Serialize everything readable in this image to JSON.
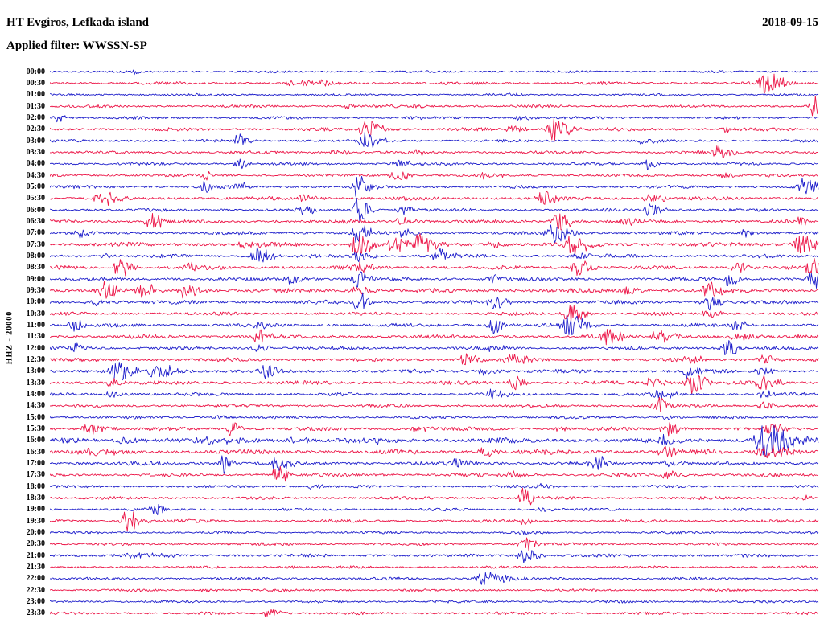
{
  "header": {
    "station_title": "HT Evgiros, Lefkada island",
    "date": "2018-09-15",
    "filter_label": "Applied filter: WWSSN-SP"
  },
  "y_axis_label": "HHZ - 20000",
  "chart_data": {
    "type": "line",
    "title": "HT Evgiros, Lefkada island",
    "date": "2018-09-15",
    "filter": "WWSSN-SP",
    "channel": "HHZ",
    "scale": 20000,
    "minutes_per_row": 30,
    "legend_position": "none",
    "grid": false,
    "colors": {
      "blue": "#1e1ecb",
      "red": "#ec1648"
    },
    "events_format": "[position_fraction_of_row, peak_amplitude_px, onset_width_px]",
    "rows": [
      {
        "label": "00:00",
        "color": "blue",
        "noise": 0.8,
        "events": [
          [
            0.11,
            3.5,
            3
          ]
        ]
      },
      {
        "label": "00:30",
        "color": "red",
        "noise": 1.1,
        "events": [
          [
            0.31,
            2.5,
            18
          ],
          [
            0.355,
            3,
            8
          ],
          [
            0.93,
            13,
            9
          ]
        ]
      },
      {
        "label": "01:00",
        "color": "blue",
        "noise": 0.8,
        "events": [
          [
            0.18,
            2,
            8
          ],
          [
            0.6,
            2,
            8
          ]
        ]
      },
      {
        "label": "01:30",
        "color": "red",
        "noise": 1.0,
        "events": [
          [
            0.385,
            5,
            4
          ],
          [
            0.475,
            3,
            5
          ],
          [
            0.995,
            15,
            7
          ]
        ]
      },
      {
        "label": "02:00",
        "color": "blue",
        "noise": 1.0,
        "events": [
          [
            0.008,
            8,
            4
          ],
          [
            0.47,
            3,
            6
          ],
          [
            0.61,
            3,
            7
          ]
        ]
      },
      {
        "label": "02:30",
        "color": "red",
        "noise": 1.2,
        "events": [
          [
            0.41,
            11,
            8
          ],
          [
            0.6,
            5,
            7
          ],
          [
            0.655,
            15,
            9
          ],
          [
            0.875,
            4,
            6
          ]
        ]
      },
      {
        "label": "03:00",
        "color": "blue",
        "noise": 1.0,
        "events": [
          [
            0.245,
            9,
            5
          ],
          [
            0.41,
            12,
            8
          ],
          [
            0.77,
            4,
            6
          ]
        ]
      },
      {
        "label": "03:30",
        "color": "red",
        "noise": 1.1,
        "events": [
          [
            0.37,
            4,
            7
          ],
          [
            0.475,
            4,
            6
          ],
          [
            0.87,
            10,
            7
          ]
        ]
      },
      {
        "label": "04:00",
        "color": "blue",
        "noise": 1.0,
        "events": [
          [
            0.245,
            7,
            5
          ],
          [
            0.45,
            4,
            9
          ],
          [
            0.775,
            7,
            6
          ]
        ]
      },
      {
        "label": "04:30",
        "color": "red",
        "noise": 1.1,
        "events": [
          [
            0.2,
            5,
            4
          ],
          [
            0.45,
            6,
            8
          ],
          [
            0.565,
            4,
            7
          ],
          [
            0.875,
            4,
            6
          ]
        ]
      },
      {
        "label": "05:00",
        "color": "blue",
        "noise": 1.2,
        "events": [
          [
            0.2,
            10,
            4
          ],
          [
            0.245,
            8,
            4
          ],
          [
            0.4,
            16,
            6
          ],
          [
            0.98,
            10,
            8
          ]
        ]
      },
      {
        "label": "05:30",
        "color": "red",
        "noise": 1.3,
        "events": [
          [
            0.065,
            10,
            7
          ],
          [
            0.33,
            4,
            8
          ],
          [
            0.64,
            9,
            7
          ],
          [
            0.78,
            5,
            8
          ]
        ]
      },
      {
        "label": "06:00",
        "color": "blue",
        "noise": 1.1,
        "events": [
          [
            0.33,
            6,
            6
          ],
          [
            0.4,
            18,
            5
          ],
          [
            0.455,
            6,
            8
          ],
          [
            0.78,
            8,
            7
          ]
        ]
      },
      {
        "label": "06:30",
        "color": "red",
        "noise": 1.3,
        "events": [
          [
            0.13,
            11,
            7
          ],
          [
            0.455,
            5,
            8
          ],
          [
            0.66,
            12,
            7
          ],
          [
            0.745,
            5,
            8
          ],
          [
            0.975,
            4,
            6
          ]
        ]
      },
      {
        "label": "07:00",
        "color": "blue",
        "noise": 1.2,
        "events": [
          [
            0.04,
            6,
            5
          ],
          [
            0.4,
            14,
            6
          ],
          [
            0.455,
            6,
            7
          ],
          [
            0.655,
            12,
            8
          ],
          [
            0.9,
            6,
            6
          ]
        ]
      },
      {
        "label": "07:30",
        "color": "red",
        "noise": 1.6,
        "events": [
          [
            0.25,
            7,
            7
          ],
          [
            0.4,
            14,
            9
          ],
          [
            0.445,
            11,
            8
          ],
          [
            0.48,
            13,
            8
          ],
          [
            0.575,
            5,
            8
          ],
          [
            0.68,
            13,
            8
          ],
          [
            0.975,
            12,
            8
          ]
        ]
      },
      {
        "label": "08:00",
        "color": "blue",
        "noise": 1.3,
        "events": [
          [
            0.07,
            4,
            6
          ],
          [
            0.27,
            11,
            8
          ],
          [
            0.4,
            7,
            7
          ],
          [
            0.505,
            8,
            7
          ],
          [
            0.685,
            5,
            7
          ]
        ]
      },
      {
        "label": "08:30",
        "color": "red",
        "noise": 1.4,
        "events": [
          [
            0.09,
            12,
            7
          ],
          [
            0.18,
            7,
            6
          ],
          [
            0.4,
            5,
            8
          ],
          [
            0.685,
            12,
            7
          ],
          [
            0.89,
            7,
            6
          ],
          [
            0.99,
            13,
            7
          ]
        ]
      },
      {
        "label": "09:00",
        "color": "blue",
        "noise": 1.3,
        "events": [
          [
            0.31,
            6,
            7
          ],
          [
            0.4,
            12,
            6
          ],
          [
            0.575,
            5,
            7
          ],
          [
            0.88,
            9,
            6
          ],
          [
            0.99,
            12,
            7
          ]
        ]
      },
      {
        "label": "09:30",
        "color": "red",
        "noise": 1.5,
        "events": [
          [
            0.07,
            11,
            9
          ],
          [
            0.12,
            9,
            7
          ],
          [
            0.175,
            11,
            7
          ],
          [
            0.4,
            5,
            8
          ],
          [
            0.75,
            6,
            7
          ],
          [
            0.855,
            11,
            8
          ]
        ]
      },
      {
        "label": "10:00",
        "color": "blue",
        "noise": 1.4,
        "events": [
          [
            0.06,
            4,
            10
          ],
          [
            0.4,
            13,
            5
          ],
          [
            0.575,
            10,
            7
          ],
          [
            0.855,
            9,
            7
          ]
        ]
      },
      {
        "label": "10:30",
        "color": "red",
        "noise": 1.2,
        "events": [
          [
            0.675,
            12,
            8
          ],
          [
            0.855,
            5,
            7
          ]
        ]
      },
      {
        "label": "11:00",
        "color": "blue",
        "noise": 1.3,
        "events": [
          [
            0.03,
            9,
            6
          ],
          [
            0.27,
            4,
            8
          ],
          [
            0.575,
            12,
            6
          ],
          [
            0.675,
            15,
            8
          ],
          [
            0.89,
            6,
            7
          ]
        ]
      },
      {
        "label": "11:30",
        "color": "red",
        "noise": 1.4,
        "events": [
          [
            0.27,
            10,
            7
          ],
          [
            0.725,
            9,
            8
          ],
          [
            0.79,
            9,
            8
          ],
          [
            0.89,
            5,
            7
          ],
          [
            0.975,
            4,
            6
          ]
        ]
      },
      {
        "label": "12:00",
        "color": "blue",
        "noise": 1.2,
        "events": [
          [
            0.03,
            8,
            6
          ],
          [
            0.27,
            4,
            7
          ],
          [
            0.575,
            4,
            7
          ],
          [
            0.88,
            10,
            7
          ]
        ]
      },
      {
        "label": "12:30",
        "color": "red",
        "noise": 1.3,
        "events": [
          [
            0.54,
            9,
            7
          ],
          [
            0.6,
            8,
            7
          ],
          [
            0.83,
            6,
            7
          ],
          [
            0.925,
            6,
            7
          ]
        ]
      },
      {
        "label": "13:00",
        "color": "blue",
        "noise": 1.4,
        "events": [
          [
            0.085,
            13,
            9
          ],
          [
            0.135,
            9,
            12
          ],
          [
            0.28,
            8,
            7
          ],
          [
            0.565,
            5,
            8
          ],
          [
            0.83,
            9,
            7
          ],
          [
            0.925,
            5,
            7
          ]
        ]
      },
      {
        "label": "13:30",
        "color": "red",
        "noise": 1.4,
        "events": [
          [
            0.08,
            5,
            7
          ],
          [
            0.6,
            9,
            7
          ],
          [
            0.78,
            7,
            7
          ],
          [
            0.835,
            13,
            8
          ],
          [
            0.925,
            10,
            7
          ]
        ]
      },
      {
        "label": "14:00",
        "color": "blue",
        "noise": 1.2,
        "events": [
          [
            0.08,
            4,
            7
          ],
          [
            0.575,
            6,
            7
          ],
          [
            0.79,
            9,
            7
          ],
          [
            0.925,
            5,
            6
          ]
        ]
      },
      {
        "label": "14:30",
        "color": "red",
        "noise": 1.1,
        "events": [
          [
            0.79,
            10,
            7
          ],
          [
            0.925,
            6,
            6
          ]
        ]
      },
      {
        "label": "15:00",
        "color": "blue",
        "noise": 1.0,
        "events": [
          [
            0.22,
            3,
            8
          ],
          [
            0.8,
            4,
            7
          ]
        ]
      },
      {
        "label": "15:30",
        "color": "red",
        "noise": 1.3,
        "events": [
          [
            0.05,
            6,
            12
          ],
          [
            0.235,
            12,
            4
          ],
          [
            0.475,
            5,
            7
          ],
          [
            0.66,
            4,
            7
          ],
          [
            0.8,
            10,
            7
          ],
          [
            0.935,
            9,
            6
          ]
        ]
      },
      {
        "label": "16:00",
        "color": "blue",
        "noise": 1.8,
        "events": [
          [
            0.1,
            3,
            18
          ],
          [
            0.21,
            3,
            18
          ],
          [
            0.32,
            3,
            15
          ],
          [
            0.42,
            3,
            12
          ],
          [
            0.8,
            6,
            8
          ],
          [
            0.93,
            22,
            13
          ]
        ]
      },
      {
        "label": "16:30",
        "color": "red",
        "noise": 1.7,
        "events": [
          [
            0.05,
            3,
            14
          ],
          [
            0.565,
            6,
            7
          ],
          [
            0.8,
            8,
            8
          ],
          [
            0.93,
            9,
            11
          ]
        ]
      },
      {
        "label": "17:00",
        "color": "blue",
        "noise": 1.4,
        "events": [
          [
            0.225,
            13,
            4
          ],
          [
            0.295,
            10,
            6
          ],
          [
            0.53,
            6,
            7
          ],
          [
            0.71,
            9,
            7
          ],
          [
            0.8,
            4,
            8
          ]
        ]
      },
      {
        "label": "17:30",
        "color": "red",
        "noise": 1.2,
        "events": [
          [
            0.295,
            15,
            5
          ],
          [
            0.6,
            4,
            8
          ],
          [
            0.8,
            6,
            8
          ]
        ]
      },
      {
        "label": "18:00",
        "color": "blue",
        "noise": 1.0,
        "events": [
          [
            0.34,
            3,
            7
          ],
          [
            0.64,
            3,
            7
          ]
        ]
      },
      {
        "label": "18:30",
        "color": "red",
        "noise": 1.1,
        "events": [
          [
            0.615,
            13,
            5
          ],
          [
            0.975,
            4,
            6
          ]
        ]
      },
      {
        "label": "19:00",
        "color": "blue",
        "noise": 1.0,
        "events": [
          [
            0.135,
            7,
            5
          ],
          [
            0.64,
            3,
            7
          ]
        ]
      },
      {
        "label": "19:30",
        "color": "red",
        "noise": 1.1,
        "events": [
          [
            0.1,
            14,
            7
          ],
          [
            0.615,
            4,
            6
          ]
        ]
      },
      {
        "label": "20:00",
        "color": "blue",
        "noise": 0.9,
        "events": [
          [
            0.615,
            3,
            6
          ]
        ]
      },
      {
        "label": "20:30",
        "color": "red",
        "noise": 1.0,
        "events": [
          [
            0.615,
            10,
            6
          ]
        ]
      },
      {
        "label": "21:00",
        "color": "blue",
        "noise": 1.2,
        "events": [
          [
            0.1,
            3,
            14
          ],
          [
            0.615,
            9,
            7
          ]
        ]
      },
      {
        "label": "21:30",
        "color": "red",
        "noise": 0.9,
        "events": [
          [
            0.3,
            2,
            9
          ]
        ]
      },
      {
        "label": "22:00",
        "color": "blue",
        "noise": 1.0,
        "events": [
          [
            0.565,
            9,
            12
          ]
        ]
      },
      {
        "label": "22:30",
        "color": "red",
        "noise": 0.9,
        "events": [
          [
            0.2,
            2,
            8
          ]
        ]
      },
      {
        "label": "23:00",
        "color": "blue",
        "noise": 0.9,
        "events": [
          [
            0.5,
            2,
            8
          ]
        ]
      },
      {
        "label": "23:30",
        "color": "red",
        "noise": 1.0,
        "events": [
          [
            0.285,
            5,
            8
          ]
        ]
      }
    ]
  }
}
